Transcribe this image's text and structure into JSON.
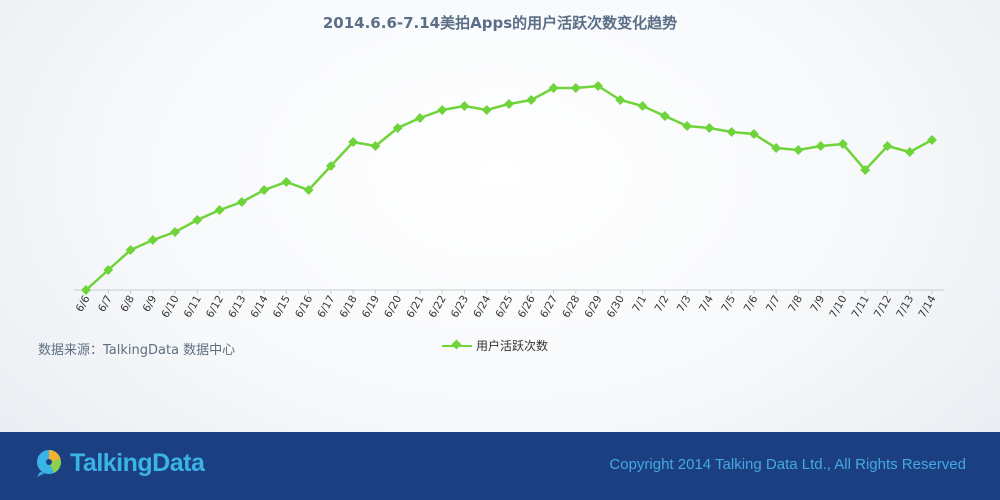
{
  "colors": {
    "series": "#6ed43a",
    "footer_bg": "#1b3f80",
    "title": "#5a6f87",
    "brand": "#3ab4e6"
  },
  "chart_data": {
    "type": "line",
    "title": "2014.6.6-7.14美拍Apps的用户活跃次数变化趋势",
    "xlabel": "",
    "ylabel": "",
    "categories": [
      "6/6",
      "6/7",
      "6/8",
      "6/9",
      "6/10",
      "6/11",
      "6/12",
      "6/13",
      "6/14",
      "6/15",
      "6/16",
      "6/17",
      "6/18",
      "6/19",
      "6/20",
      "6/21",
      "6/22",
      "6/23",
      "6/24",
      "6/25",
      "6/26",
      "6/27",
      "6/28",
      "6/29",
      "6/30",
      "7/1",
      "7/2",
      "7/3",
      "7/4",
      "7/5",
      "7/6",
      "7/7",
      "7/8",
      "7/9",
      "7/10",
      "7/11",
      "7/12",
      "7/13",
      "7/14"
    ],
    "series": [
      {
        "name": "用户活跃次数",
        "values": [
          0,
          10,
          20,
          25,
          29,
          35,
          40,
          44,
          50,
          54,
          50,
          62,
          74,
          72,
          81,
          86,
          90,
          92,
          90,
          93,
          95,
          101,
          101,
          102,
          95,
          92,
          87,
          82,
          81,
          79,
          78,
          71,
          70,
          72,
          73,
          60,
          72,
          69,
          75
        ]
      }
    ],
    "ylim": [
      0,
      110
    ],
    "legend": "bottom-center",
    "grid": false
  },
  "source_note": "数据来源：TalkingData 数据中心",
  "footer": {
    "logo_text": "TalkingData",
    "copyright": "Copyright 2014 Talking Data Ltd., All Rights Reserved"
  }
}
